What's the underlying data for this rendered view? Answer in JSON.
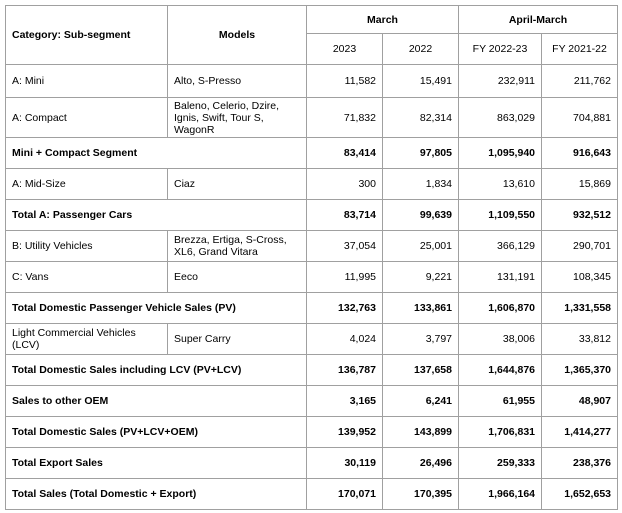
{
  "table": {
    "header": {
      "category": "Category: Sub-segment",
      "models": "Models",
      "groups": [
        "March",
        "April-March"
      ],
      "periods": [
        "2023",
        "2022",
        "FY 2022-23",
        "FY 2021-22"
      ]
    },
    "rows": [
      [
        "A: Mini",
        "Alto, S-Presso",
        "11,582",
        "15,491",
        "232,911",
        "211,762"
      ],
      [
        "A: Compact",
        "Baleno, Celerio, Dzire, Ignis, Swift, Tour S, WagonR",
        "71,832",
        "82,314",
        "863,029",
        "704,881"
      ],
      [
        "Mini + Compact Segment",
        "83,414",
        "97,805",
        "1,095,940",
        "916,643"
      ],
      [
        "A: Mid-Size",
        "Ciaz",
        "300",
        "1,834",
        "13,610",
        "15,869"
      ],
      [
        "Total A: Passenger Cars",
        "83,714",
        "99,639",
        "1,109,550",
        "932,512"
      ],
      [
        "B: Utility Vehicles",
        "Brezza, Ertiga, S-Cross, XL6, Grand Vitara",
        "37,054",
        "25,001",
        "366,129",
        "290,701"
      ],
      [
        "C: Vans",
        "Eeco",
        "11,995",
        "9,221",
        "131,191",
        "108,345"
      ],
      [
        "Total Domestic Passenger Vehicle Sales (PV)",
        "132,763",
        "133,861",
        "1,606,870",
        "1,331,558"
      ],
      [
        "Light Commercial Vehicles (LCV)",
        "Super Carry",
        "4,024",
        "3,797",
        "38,006",
        "33,812"
      ],
      [
        "Total Domestic Sales including LCV (PV+LCV)",
        "136,787",
        "137,658",
        "1,644,876",
        "1,365,370"
      ],
      [
        "Sales to other OEM",
        "3,165",
        "6,241",
        "61,955",
        "48,907"
      ],
      [
        "Total Domestic Sales (PV+LCV+OEM)",
        "139,952",
        "143,899",
        "1,706,831",
        "1,414,277"
      ],
      [
        "Total Export Sales",
        "30,119",
        "26,496",
        "259,333",
        "238,376"
      ],
      [
        "Total Sales (Total Domestic + Export)",
        "170,071",
        "170,395",
        "1,966,164",
        "1,652,653"
      ]
    ]
  }
}
